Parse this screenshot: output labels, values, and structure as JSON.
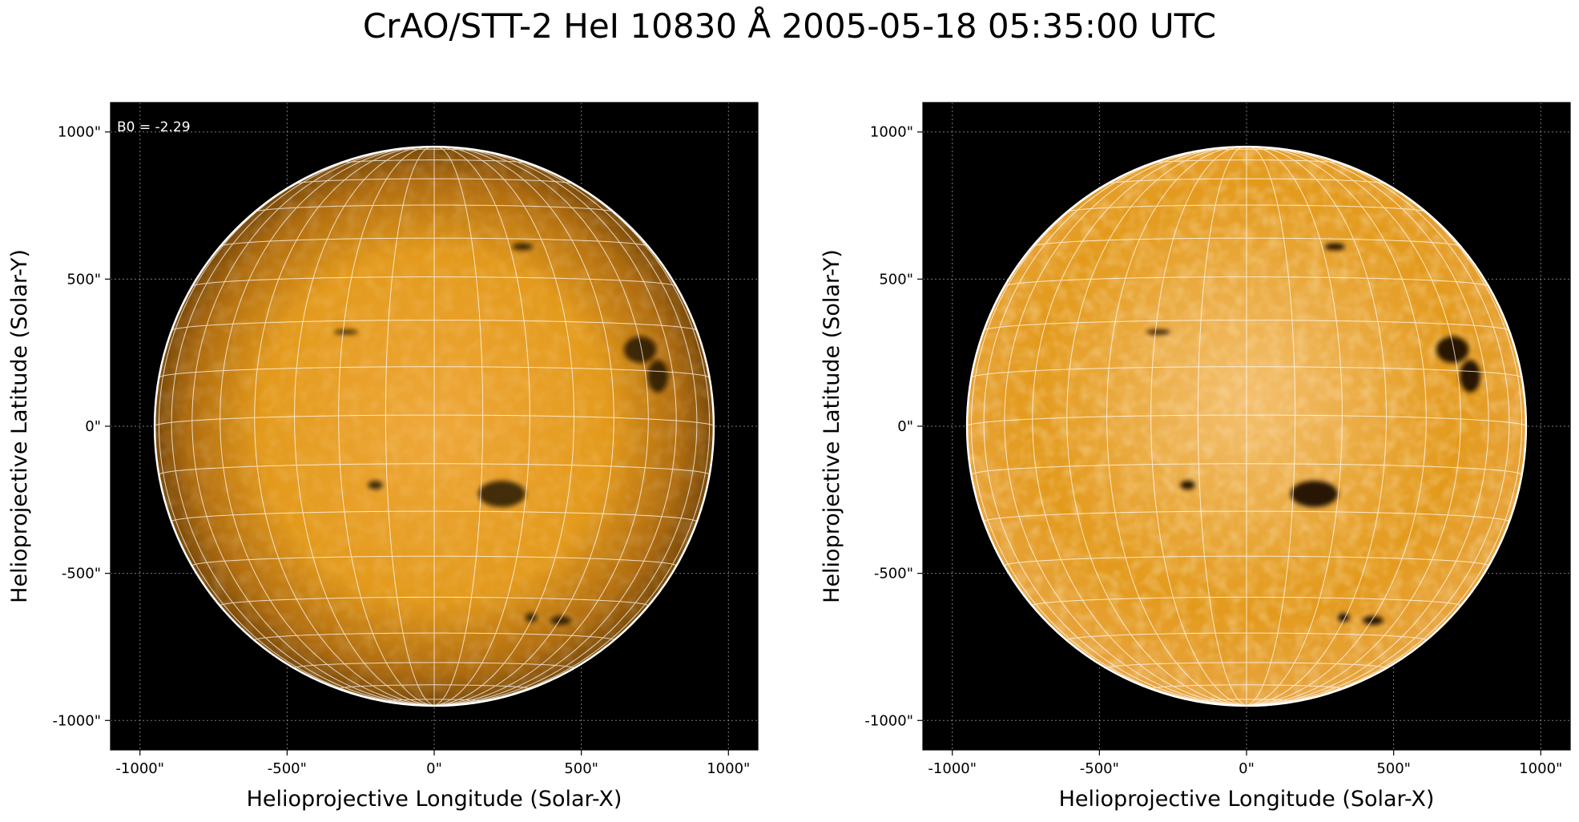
{
  "title": "CrAO/STT-2 HeI 10830 Å 2005-05-18 05:35:00 UTC",
  "colors": {
    "background": "#000000",
    "disk_mid": "#e39a1c",
    "disk_center_left": "#efa83a",
    "disk_limb_left": "#7a4a0a",
    "disk_center_right": "#f4c070",
    "disk_limb_right": "#e8a540",
    "grid": "#ffffff",
    "limb": "#ffffff",
    "dark_feature": "#1a0c00"
  },
  "panels": [
    {
      "id": "left",
      "annotation": "B0 = -2.29",
      "xlabel": "Helioprojective Longitude (Solar-X)",
      "ylabel": "Helioprojective Latitude (Solar-Y)",
      "xticks": [
        "-1000\"",
        "-500\"",
        "0\"",
        "500\"",
        "1000\""
      ],
      "yticks": [
        "1000\"",
        "500\"",
        "0\"",
        "-500\"",
        "-1000\""
      ],
      "style": "original"
    },
    {
      "id": "right",
      "annotation": "",
      "xlabel": "Helioprojective Longitude (Solar-X)",
      "ylabel": "Helioprojective Latitude (Solar-Y)",
      "xticks": [
        "-1000\"",
        "-500\"",
        "0\"",
        "500\"",
        "1000\""
      ],
      "yticks": [
        "1000\"",
        "500\"",
        "0\"",
        "-500\"",
        "-1000\""
      ],
      "style": "enhanced"
    }
  ],
  "solar": {
    "radius_arcsec": 950,
    "axis_range_arcsec": [
      -1100,
      1100
    ],
    "tick_values_arcsec": [
      -1000,
      -500,
      0,
      500,
      1000
    ],
    "b0_deg": -2.29,
    "lon_grid_step_deg": 10,
    "lat_grid_step_deg": 10
  },
  "features": [
    {
      "x": 700,
      "y": 260,
      "rx": 55,
      "ry": 45
    },
    {
      "x": 760,
      "y": 170,
      "rx": 35,
      "ry": 55
    },
    {
      "x": 230,
      "y": -230,
      "rx": 80,
      "ry": 45
    },
    {
      "x": 300,
      "y": 610,
      "rx": 35,
      "ry": 12
    },
    {
      "x": -200,
      "y": -200,
      "rx": 25,
      "ry": 15
    },
    {
      "x": 430,
      "y": -660,
      "rx": 35,
      "ry": 15
    },
    {
      "x": 330,
      "y": -650,
      "rx": 20,
      "ry": 15
    },
    {
      "x": -300,
      "y": 320,
      "rx": 40,
      "ry": 8
    }
  ]
}
